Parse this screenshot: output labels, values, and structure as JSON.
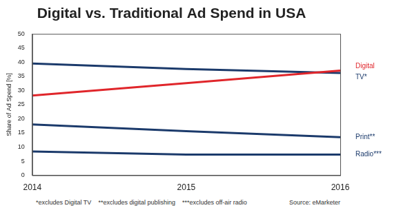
{
  "chart_data": {
    "type": "line",
    "title": "Digital vs. Traditional Ad Spend in USA",
    "y_label": "Share of Ad Spend [%]",
    "categories": [
      "2014",
      "2015",
      "2016"
    ],
    "series": [
      {
        "name": "Digital",
        "color": "#e0262b",
        "values": [
          28.2,
          32.6,
          37.0
        ]
      },
      {
        "name": "TV*",
        "color": "#1b3a6b",
        "values": [
          39.5,
          37.6,
          36.2
        ]
      },
      {
        "name": "Print**",
        "color": "#1b3a6b",
        "values": [
          18.0,
          15.6,
          13.5
        ]
      },
      {
        "name": "Radio***",
        "color": "#1b3a6b",
        "values": [
          8.4,
          7.3,
          7.3
        ]
      }
    ],
    "ylim": [
      0,
      50
    ],
    "yticks": [
      0,
      5,
      10,
      15,
      20,
      25,
      30,
      35,
      40,
      45,
      50
    ],
    "grid": false,
    "notes": [
      "*excludes Digital TV",
      "**excludes digital publishing",
      "***excludes off-air radio"
    ],
    "source": "Source: eMarketer"
  }
}
